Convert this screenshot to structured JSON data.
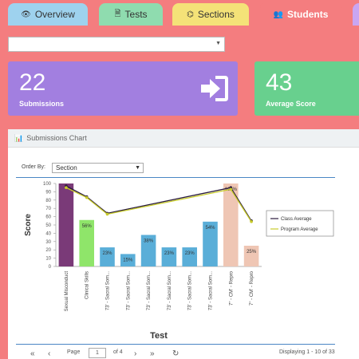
{
  "tabs": [
    {
      "label": "Overview",
      "icon": "eye-icon"
    },
    {
      "label": "Tests",
      "icon": "document-icon"
    },
    {
      "label": "Sections",
      "icon": "sitemap-icon"
    },
    {
      "label": "Students",
      "icon": "users-icon"
    }
  ],
  "top_select": {
    "value": ""
  },
  "cards": {
    "submissions": {
      "value": "22",
      "label": "Submissions",
      "icon": "sign-in-icon",
      "color": "#a27fe0"
    },
    "average": {
      "value": "43",
      "label": "Average Score",
      "color": "#68d08e"
    }
  },
  "panel": {
    "title": "Submissions Chart",
    "icon": "bar-chart-icon"
  },
  "order_by": {
    "label": "Order By:",
    "value": "Section"
  },
  "chart_data": {
    "type": "bar",
    "xlabel": "Test",
    "ylabel": "Score",
    "ylim": [
      0,
      100
    ],
    "yticks": [
      0,
      10,
      20,
      30,
      40,
      50,
      60,
      70,
      80,
      90,
      100
    ],
    "categories": [
      "Sexual Misconduct",
      "Clinical Skills",
      "73' - Sacral Som...",
      "73' - Sacral Som...",
      "73' - Sacral Som...",
      "73' - Sacral Som...",
      "73' - Sacral Som...",
      "73' - Sacral Som...",
      "7\" - CM' - Repro",
      "7\" - CM' - Repro"
    ],
    "values": [
      100,
      56,
      23,
      15,
      38,
      23,
      23,
      54,
      100,
      25
    ],
    "value_labels": [
      "",
      "56%",
      "23%",
      "15%",
      "38%",
      "23%",
      "23%",
      "54%",
      "100%",
      "25%"
    ],
    "bar_colors": [
      "#7a3a78",
      "#8fe56a",
      "#5aaed8",
      "#5aaed8",
      "#5aaed8",
      "#5aaed8",
      "#5aaed8",
      "#5aaed8",
      "#efc6b4",
      "#efc6b4"
    ],
    "series": [
      {
        "name": "Class Average",
        "color": "#2a1b3d",
        "points": [
          [
            0,
            97
          ],
          [
            1,
            84
          ],
          [
            2,
            64
          ],
          [
            8,
            95
          ],
          [
            9,
            55
          ]
        ]
      },
      {
        "name": "Program Average",
        "color": "#c8cc2a",
        "points": [
          [
            0,
            95
          ],
          [
            1,
            83
          ],
          [
            2,
            63
          ],
          [
            8,
            93
          ],
          [
            9,
            54
          ]
        ]
      }
    ],
    "legend": "right"
  },
  "pager": {
    "page_label": "Page",
    "page_value": "1",
    "of_label": "of 4",
    "displaying": "Displaying 1 - 10 of 33"
  }
}
